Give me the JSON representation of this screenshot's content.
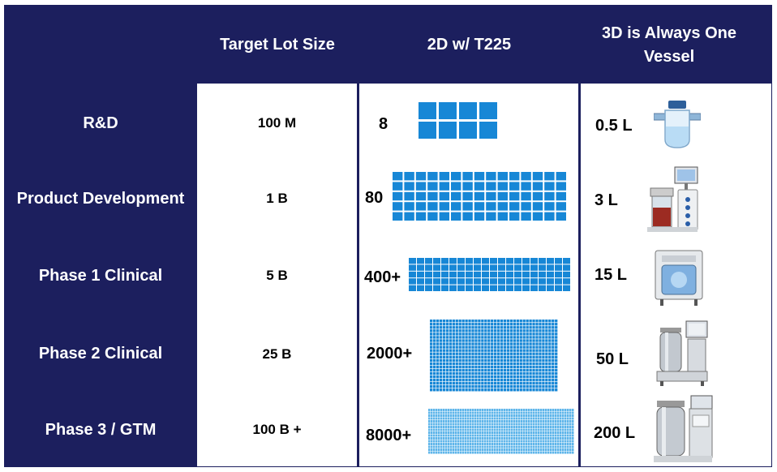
{
  "headers": {
    "lot_size": "Target Lot Size",
    "two_d": "2D w/ T225",
    "three_d": "3D is Always One Vessel"
  },
  "rows": [
    {
      "stage": "R&D",
      "lot_size": "100 M",
      "flask_count": "8",
      "volume": "0.5 L"
    },
    {
      "stage": "Product Development",
      "lot_size": "1 B",
      "flask_count": "80",
      "volume": "3 L"
    },
    {
      "stage": "Phase 1 Clinical",
      "lot_size": "5 B",
      "flask_count": "400+",
      "volume": "15 L"
    },
    {
      "stage": "Phase 2 Clinical",
      "lot_size": "25 B",
      "flask_count": "2000+",
      "volume": "50 L"
    },
    {
      "stage": "Phase 3 / GTM",
      "lot_size": "100 B +",
      "flask_count": "8000+",
      "volume": "200 L"
    }
  ],
  "colors": {
    "navy": "#1c1f5e",
    "flask_blue": "#1787d6",
    "flask_light": "#5eb5ea"
  },
  "icons": [
    "small-spinner-flask-icon",
    "benchtop-bioreactor-icon",
    "cabinet-bioreactor-icon",
    "steel-bioreactor-icon",
    "large-steel-bioreactor-icon"
  ]
}
